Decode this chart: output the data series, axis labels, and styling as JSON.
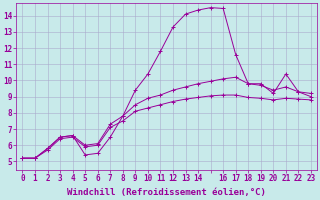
{
  "background_color": "#c8eaea",
  "grid_color": "#aaaacc",
  "line_color": "#990099",
  "marker_color": "#990099",
  "xlabel": "Windchill (Refroidissement éolien,°C)",
  "xlim_min": -0.5,
  "xlim_max": 23.5,
  "ylim_min": 4.5,
  "ylim_max": 14.8,
  "yticks": [
    5,
    6,
    7,
    8,
    9,
    10,
    11,
    12,
    13,
    14
  ],
  "xtick_labels": [
    "0",
    "1",
    "2",
    "3",
    "4",
    "5",
    "6",
    "7",
    "8",
    "9",
    "10",
    "11",
    "12",
    "13",
    "14",
    "",
    "16",
    "17",
    "18",
    "19",
    "20",
    "21",
    "22",
    "23"
  ],
  "xtick_positions": [
    0,
    1,
    2,
    3,
    4,
    5,
    6,
    7,
    8,
    9,
    10,
    11,
    12,
    13,
    14,
    15,
    16,
    17,
    18,
    19,
    20,
    21,
    22,
    23
  ],
  "series": [
    {
      "x": [
        0,
        1,
        2,
        3,
        4,
        5,
        6,
        7,
        8,
        9,
        10,
        11,
        12,
        13,
        14,
        15,
        16,
        17,
        18,
        19,
        20,
        21,
        22,
        23
      ],
      "y": [
        5.2,
        5.2,
        5.8,
        6.5,
        6.6,
        5.4,
        5.5,
        6.5,
        7.8,
        9.4,
        10.4,
        11.8,
        13.3,
        14.1,
        14.35,
        14.5,
        14.45,
        11.6,
        9.8,
        9.8,
        9.2,
        10.4,
        9.3,
        9.0
      ]
    },
    {
      "x": [
        0,
        1,
        2,
        3,
        4,
        5,
        6,
        7,
        8,
        9,
        10,
        11,
        12,
        13,
        14,
        15,
        16,
        17,
        18,
        19,
        20,
        21,
        22,
        23
      ],
      "y": [
        5.2,
        5.2,
        5.8,
        6.5,
        6.6,
        6.0,
        6.1,
        7.3,
        7.8,
        8.5,
        8.9,
        9.1,
        9.4,
        9.6,
        9.8,
        9.95,
        10.1,
        10.2,
        9.8,
        9.7,
        9.4,
        9.6,
        9.3,
        9.2
      ]
    },
    {
      "x": [
        0,
        1,
        2,
        3,
        4,
        5,
        6,
        7,
        8,
        9,
        10,
        11,
        12,
        13,
        14,
        15,
        16,
        17,
        18,
        19,
        20,
        21,
        22,
        23
      ],
      "y": [
        5.2,
        5.2,
        5.7,
        6.4,
        6.5,
        5.9,
        6.0,
        7.1,
        7.5,
        8.1,
        8.3,
        8.5,
        8.7,
        8.85,
        8.95,
        9.05,
        9.1,
        9.1,
        8.95,
        8.9,
        8.8,
        8.9,
        8.85,
        8.8
      ]
    }
  ],
  "tick_fontsize": 5.5,
  "axis_fontsize": 6.5,
  "linewidth": 0.7,
  "markersize": 2.5,
  "markeredgewidth": 0.7
}
